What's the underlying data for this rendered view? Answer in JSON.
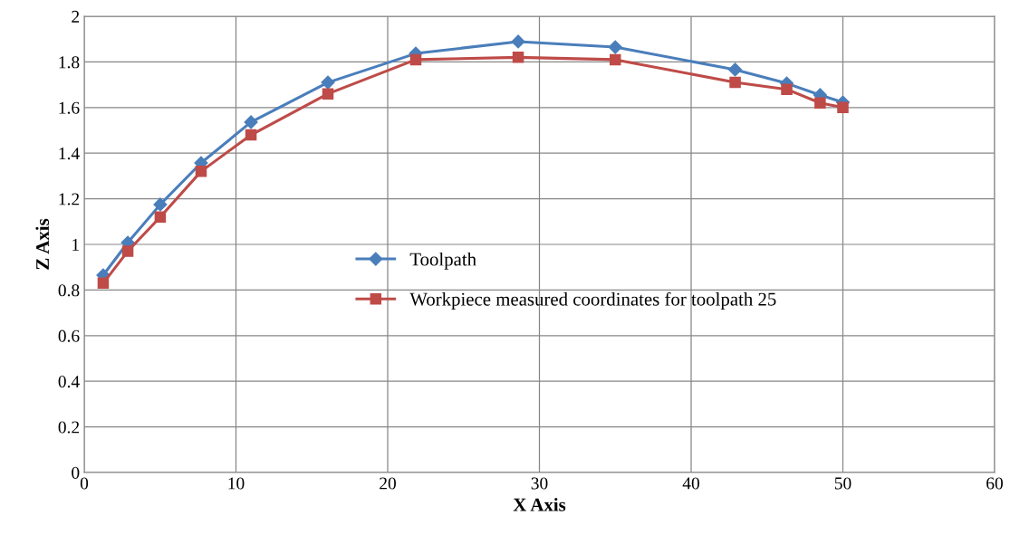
{
  "chart_data": {
    "type": "line",
    "xlabel": "X Axis",
    "ylabel": "Z Axis",
    "xlim": [
      0,
      60
    ],
    "xticks": [
      0,
      10,
      20,
      30,
      40,
      50,
      60
    ],
    "ylim": [
      0,
      2
    ],
    "yticks": [
      0,
      0.2,
      0.4,
      0.6,
      0.8,
      1,
      1.2,
      1.4,
      1.6,
      1.8,
      2
    ],
    "grid": true,
    "legend": "center",
    "x": [
      1.25,
      2.87,
      5.01,
      7.7,
      10.99,
      16.06,
      21.85,
      28.6,
      35.0,
      42.9,
      46.3,
      48.5,
      50.0
    ],
    "series": [
      {
        "name": "Toolpath",
        "color": "#4a7ebb",
        "marker": "diamond",
        "values": [
          0.865,
          1.008,
          1.175,
          1.357,
          1.536,
          1.71,
          1.837,
          1.889,
          1.865,
          1.766,
          1.706,
          1.655,
          1.623
        ]
      },
      {
        "name": "Workpiece measured coordinates for toolpath 25",
        "color": "#be4b48",
        "marker": "square",
        "values": [
          0.83,
          0.97,
          1.12,
          1.32,
          1.48,
          1.66,
          1.81,
          1.82,
          1.81,
          1.71,
          1.68,
          1.62,
          1.6
        ]
      }
    ]
  }
}
